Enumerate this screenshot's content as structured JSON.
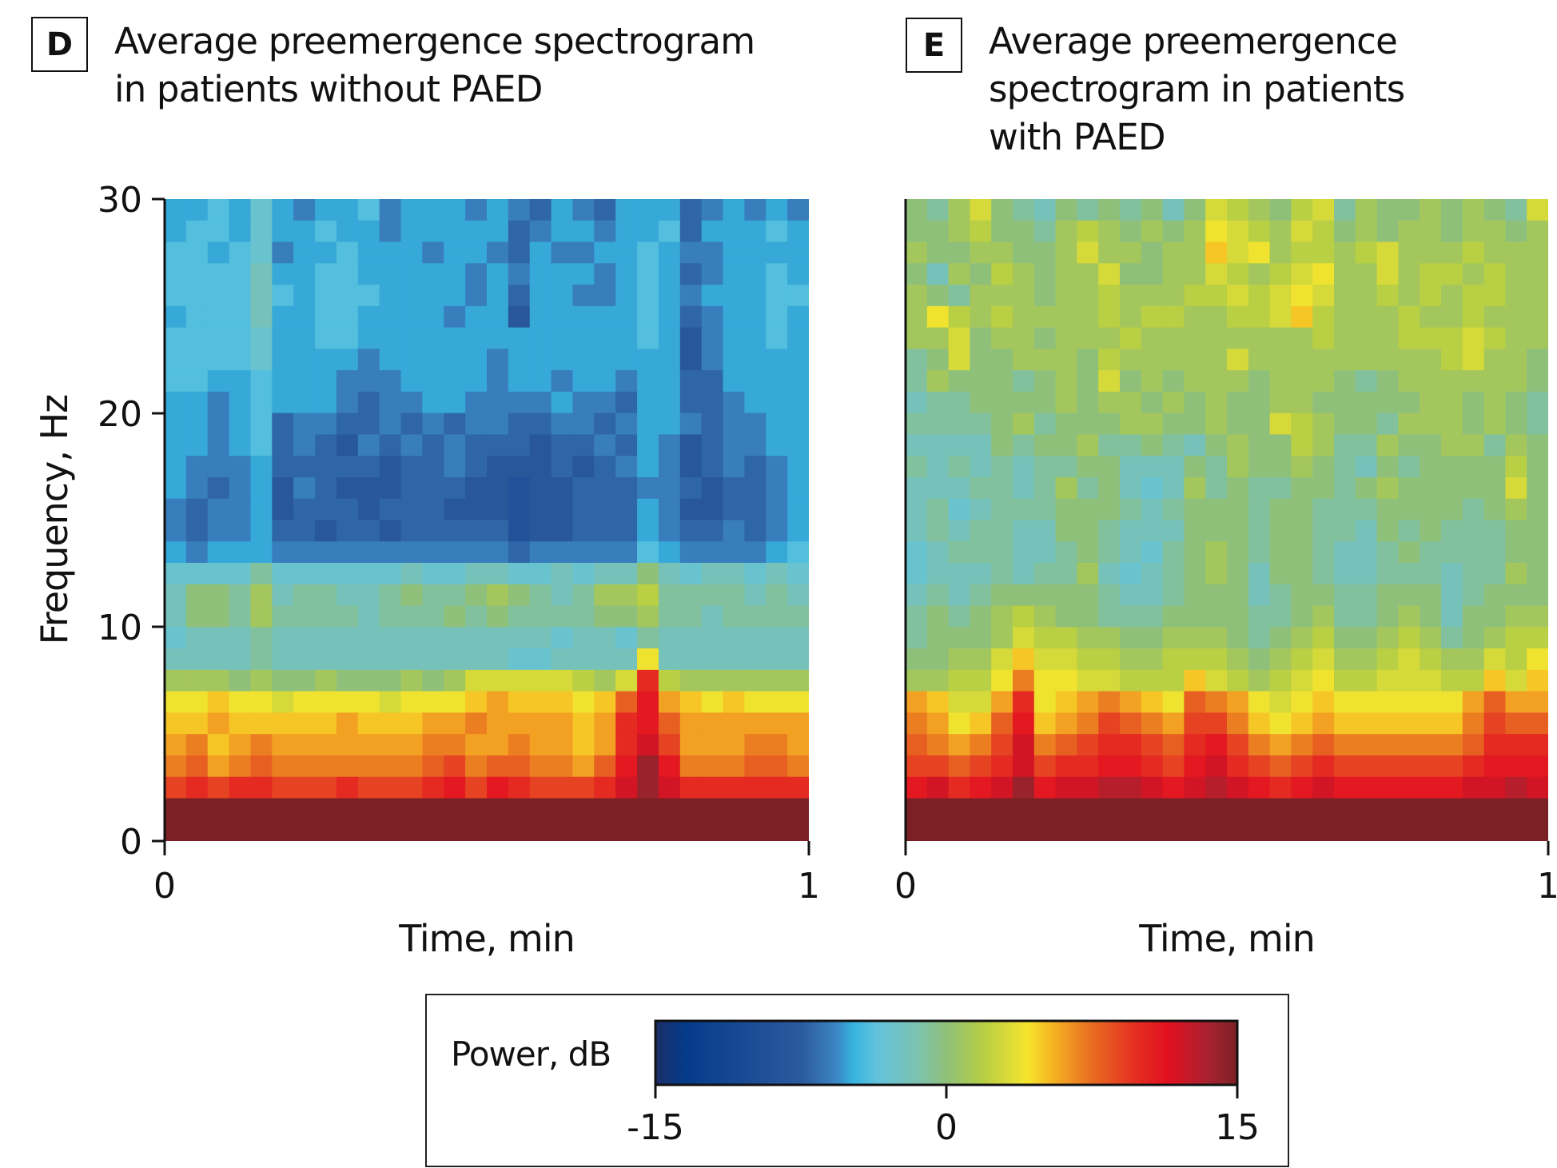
{
  "panels": [
    {
      "letter": "D",
      "title": "Average preemergence spectrogram\nin patients without PAED"
    },
    {
      "letter": "E",
      "title": "Average preemergence\nspectrogram in patients\nwith PAED"
    }
  ],
  "chart_data": [
    {
      "type": "heatmap",
      "panel": "D",
      "title": "Average preemergence spectrogram in patients without PAED",
      "xlabel": "Time, min",
      "ylabel": "Frequency, Hz",
      "xlim": [
        0,
        1
      ],
      "ylim": [
        0,
        30
      ],
      "xticks": [
        "0",
        "1"
      ],
      "yticks": [
        "0",
        "10",
        "20",
        "30"
      ],
      "clim": [
        -15,
        15
      ],
      "n_time_bins": 30,
      "n_freq_bins": 30,
      "z_rows_top_to_bottom_dB": [
        "-5,-5,-4,-5,-3,-5,-6,-5,-5,-4,-6,-5,-5,-5,-6,-5,-6,-7,-5,-6,-7,-5,-5,-5,-7,-6,-5,-6,-5,-6",
        "-5,-4,-4,-5,-3,-5,-5,-4,-5,-5,-6,-5,-5,-5,-5,-5,-7,-6,-5,-5,-6,-5,-5,-4,-7,-5,-5,-5,-4,-5",
        "-4,-4,-5,-4,-3,-6,-5,-5,-4,-5,-5,-5,-6,-5,-5,-6,-7,-5,-6,-6,-5,-5,-4,-5,-6,-6,-5,-5,-5,-5",
        "-4,-4,-4,-4,-2,-5,-5,-4,-4,-5,-5,-5,-5,-5,-6,-5,-6,-5,-5,-5,-6,-5,-4,-5,-7,-6,-5,-5,-4,-5",
        "-4,-4,-4,-4,-2,-4,-5,-4,-4,-4,-5,-5,-5,-5,-6,-5,-7,-5,-5,-6,-6,-5,-4,-5,-6,-5,-5,-5,-4,-4",
        "-5,-4,-4,-4,-2,-5,-5,-4,-4,-5,-5,-5,-5,-6,-5,-5,-8,-5,-5,-5,-5,-5,-4,-5,-7,-6,-5,-5,-4,-5",
        "-4,-4,-4,-4,-3,-5,-5,-4,-4,-5,-5,-5,-5,-5,-5,-5,-5,-5,-5,-5,-5,-5,-4,-5,-8,-6,-5,-5,-4,-5",
        "-4,-4,-4,-4,-3,-5,-5,-5,-5,-6,-5,-5,-5,-5,-5,-6,-5,-5,-5,-5,-5,-5,-5,-5,-8,-6,-5,-5,-5,-5",
        "-4,-4,-5,-5,-4,-5,-5,-5,-6,-6,-6,-5,-5,-5,-5,-6,-5,-5,-6,-5,-5,-6,-5,-5,-7,-7,-5,-5,-5,-5",
        "-5,-5,-6,-5,-4,-5,-5,-5,-6,-7,-6,-6,-5,-5,-6,-6,-6,-6,-5,-6,-6,-7,-5,-5,-7,-7,-6,-5,-5,-5",
        "-5,-5,-6,-5,-4,-7,-6,-6,-7,-7,-6,-7,-6,-7,-6,-6,-7,-7,-6,-6,-7,-6,-5,-5,-6,-7,-6,-6,-5,-5",
        "-5,-5,-6,-5,-4,-7,-6,-7,-8,-6,-7,-6,-7,-6,-7,-7,-7,-8,-7,-7,-6,-7,-5,-6,-8,-7,-6,-6,-5,-5",
        "-5,-6,-6,-6,-5,-7,-7,-7,-7,-7,-8,-7,-7,-6,-7,-8,-8,-8,-7,-8,-7,-6,-5,-6,-8,-7,-6,-7,-6,-5",
        "-5,-6,-7,-6,-5,-8,-6,-7,-8,-8,-8,-7,-7,-7,-8,-8,-9,-8,-8,-7,-7,-7,-6,-6,-7,-8,-7,-7,-6,-5",
        "-6,-7,-6,-6,-5,-8,-7,-7,-7,-8,-7,-7,-7,-8,-8,-8,-9,-8,-8,-7,-7,-7,-5,-6,-8,-8,-7,-7,-6,-5",
        "-6,-7,-6,-6,-5,-7,-7,-8,-7,-7,-8,-7,-7,-7,-7,-7,-9,-8,-8,-7,-7,-7,-5,-6,-7,-7,-6,-7,-6,-5",
        "-5,-6,-5,-5,-5,-6,-6,-6,-6,-6,-6,-6,-6,-6,-6,-6,-7,-6,-6,-6,-6,-6,-4,-5,-6,-6,-6,-6,-5,-4",
        "-3,-3,-3,-3,-1,-3,-3,-3,-3,-3,-3,-2,-3,-3,-2,-2,-3,-3,-2,-3,-2,-2,0,-2,-3,-2,-2,-3,-2,-3",
        "-2,0,0,-1,1,-2,-1,-1,-2,-2,-1,0,-1,-1,0,1,0,-1,-2,-1,1,1,2,-1,-1,-1,-1,-2,-1,-2",
        "-2,0,0,-1,1,-1,-1,-1,-1,-2,-1,-1,-1,0,-1,0,-1,-1,-1,-1,0,0,1,-1,-1,-2,-1,-1,-1,-1",
        "-3,-2,-2,-2,-1,-2,-2,-2,-2,-2,-2,-2,-2,-2,-2,-2,-2,-2,-3,-2,-2,-3,-1,-2,-2,-2,-2,-2,-2,-2",
        "-2,-2,-2,-2,-1,-2,-2,-2,-2,-2,-2,-2,-2,-2,-2,-2,-3,-3,-2,-2,-2,-2,4,-2,-2,-2,-2,-2,-2,-2",
        "1,1,1,0,1,0,0,1,0,0,0,1,0,1,3,3,3,3,3,2,1,3,10,2,1,1,1,1,1,1",
        "4,4,5,4,4,3,4,4,4,4,3,4,4,4,5,6,5,5,5,4,5,8,11,6,5,4,5,4,4,4",
        "5,5,6,5,5,5,5,5,6,5,5,5,6,6,7,6,6,6,6,5,6,10,11,8,6,6,6,6,6,6",
        "6,7,5,6,7,6,6,6,6,6,6,6,7,7,6,6,7,6,6,5,6,10,12,9,6,6,6,7,7,6",
        "7,8,6,7,8,7,7,7,7,7,7,7,8,9,7,8,8,7,7,6,8,11,14,11,7,7,7,8,8,7",
        "9,10,9,10,10,9,9,9,10,9,9,9,10,11,9,11,10,9,9,9,10,12,14,12,10,10,10,10,10,10",
        "15,15,15,15,15,15,15,15,15,15,15,15,15,15,15,15,15,15,15,15,15,15,15,15,15,15,15,15,15,15",
        "15,15,15,15,15,15,15,15,15,15,15,15,15,15,15,15,15,15,15,15,15,15,15,15,15,15,15,15,15,15"
      ]
    },
    {
      "type": "heatmap",
      "panel": "E",
      "title": "Average preemergence spectrogram in patients with PAED",
      "xlabel": "Time, min",
      "ylabel": "Frequency, Hz",
      "xlim": [
        0,
        1
      ],
      "ylim": [
        0,
        30
      ],
      "xticks": [
        "0",
        "1"
      ],
      "yticks": [],
      "clim": [
        -15,
        15
      ],
      "n_time_bins": 30,
      "n_freq_bins": 30,
      "z_rows_top_to_bottom_dB": [
        "0,-1,1,3,0,-1,-2,0,-1,0,-1,0,-2,0,3,2,1,0,2,3,-1,1,0,0,1,0,1,0,-1,3",
        "0,0,1,2,0,0,-1,1,2,1,0,1,0,1,4,3,2,1,3,2,0,1,0,1,1,0,1,1,0,1",
        "1,0,0,1,1,0,0,1,3,1,1,0,1,1,5,3,4,1,2,2,1,2,3,1,1,1,2,1,1,1",
        "0,-2,1,0,2,1,0,1,1,3,0,0,1,1,3,2,1,2,3,4,1,1,3,1,2,2,1,2,1,1",
        "1,0,-1,1,1,1,0,1,1,2,1,1,1,2,2,3,2,3,4,3,1,1,2,1,2,1,2,2,1,1",
        "1,4,2,1,2,1,1,1,1,2,1,2,2,1,1,2,2,3,5,2,1,1,1,2,1,1,2,1,1,1",
        "1,1,3,0,1,1,0,1,1,1,2,1,1,1,1,1,1,1,1,2,1,1,1,2,2,2,3,2,1,1",
        "-1,0,3,0,0,1,1,1,0,2,1,1,1,1,1,3,1,1,1,1,1,1,1,1,1,2,3,1,1,0",
        "-1,1,0,0,0,-1,0,1,0,3,0,1,0,1,1,1,0,1,1,1,0,-1,0,1,1,1,1,1,1,0",
        "-2,-1,-1,0,0,0,0,1,0,1,1,0,1,0,1,0,0,1,1,0,0,0,0,0,1,1,0,1,0,-1",
        "-1,-1,-1,-1,0,1,-1,0,0,0,1,1,0,0,1,0,0,3,2,1,0,0,-1,1,1,1,0,1,0,-1",
        "-2,-2,-2,-2,0,-1,0,0,1,-1,-1,0,-1,-2,0,1,0,0,2,1,-1,-1,1,0,0,1,1,-1,1,0",
        "-1,-2,-1,-2,-1,-2,-1,-1,0,0,-2,-2,-2,0,-1,1,0,0,1,0,-1,-2,0,-1,0,0,0,0,2,0",
        "-2,-2,-2,-1,-1,-2,-1,1,-1,0,-2,-3,-2,1,-1,0,-1,-1,0,0,-1,0,1,0,0,0,0,0,3,0",
        "-2,-1,-3,-2,-1,-1,-1,0,0,0,-1,-2,-1,0,0,0,-1,0,0,-1,-1,-1,0,0,0,0,-1,0,1,0",
        "-2,-1,-2,-1,-1,-2,-2,0,0,-1,-2,-2,-2,0,0,0,-1,0,0,-1,-1,-2,0,-1,0,-1,-1,-1,0,0",
        "-3,-2,-1,-1,-1,-2,-2,-1,0,-1,-2,-3,-1,0,1,0,-1,0,0,-1,-2,-2,-1,0,-1,-1,-1,-1,0,0",
        "-3,-2,-2,-2,-1,-2,-1,-1,1,-2,-3,-2,-1,0,1,0,-2,0,0,-1,-2,-2,-1,-1,-1,-2,-1,-1,1,0",
        "-2,-1,-2,-1,0,0,0,0,0,-1,-2,-2,-1,0,0,0,-2,-1,0,0,-1,-1,0,0,0,-2,-1,0,0,0",
        "-1,0,-1,0,1,2,1,0,0,-1,-1,-1,0,0,0,0,-1,-1,0,1,-1,-1,0,1,0,-2,0,0,1,1",
        "-1,0,0,0,1,3,2,2,1,1,0,0,1,1,1,0,-1,0,1,2,0,0,1,2,1,-1,0,1,2,2",
        "0,0,1,1,3,5,3,3,2,2,1,1,2,2,2,1,0,1,2,3,1,1,2,3,2,1,1,3,2,4",
        "1,1,2,2,4,7,4,4,3,3,2,2,2,5,3,2,1,2,3,4,2,2,3,3,3,2,2,5,3,5",
        "6,5,3,3,6,10,4,5,6,7,6,5,4,8,7,6,4,3,4,5,4,4,4,4,4,4,6,8,6,6",
        "7,6,4,5,8,11,5,6,7,9,8,7,6,9,9,7,5,4,5,6,5,5,5,5,5,5,7,9,8,8",
        "8,7,6,7,9,12,7,8,9,10,10,9,8,10,11,9,7,6,7,8,7,7,7,7,7,7,8,10,10,10",
        "9,9,8,9,10,12,9,10,10,11,11,10,9,11,12,10,9,8,9,10,9,9,9,9,9,9,10,11,11,11",
        "11,12,10,11,12,14,11,12,12,13,13,12,11,12,13,12,11,10,11,12,11,11,11,11,11,11,12,12,13,12",
        "15,15,15,15,15,15,15,15,15,15,15,15,15,15,15,15,15,15,15,15,15,15,15,15,15,15,15,15,15,15",
        "15,15,15,15,15,15,15,15,15,15,15,15,15,15,15,15,15,15,15,15,15,15,15,15,15,15,15,15,15,15"
      ]
    }
  ],
  "colorbar": {
    "label": "Power, dB",
    "min": -15,
    "max": 15,
    "ticks": [
      "-15",
      "0",
      "15"
    ],
    "colormap_stops": [
      [
        0.0,
        "#1c2f66"
      ],
      [
        0.05,
        "#063a8a"
      ],
      [
        0.25,
        "#2b5a9e"
      ],
      [
        0.31,
        "#3b84c2"
      ],
      [
        0.34,
        "#35b4e0"
      ],
      [
        0.38,
        "#62c3dc"
      ],
      [
        0.45,
        "#7cc2b0"
      ],
      [
        0.5,
        "#8fc07a"
      ],
      [
        0.56,
        "#b4cd46"
      ],
      [
        0.64,
        "#f6e52d"
      ],
      [
        0.68,
        "#f6b622"
      ],
      [
        0.75,
        "#e96d22"
      ],
      [
        0.82,
        "#e53222"
      ],
      [
        0.88,
        "#e2101f"
      ],
      [
        0.95,
        "#a82230"
      ],
      [
        1.0,
        "#7b2126"
      ]
    ]
  }
}
